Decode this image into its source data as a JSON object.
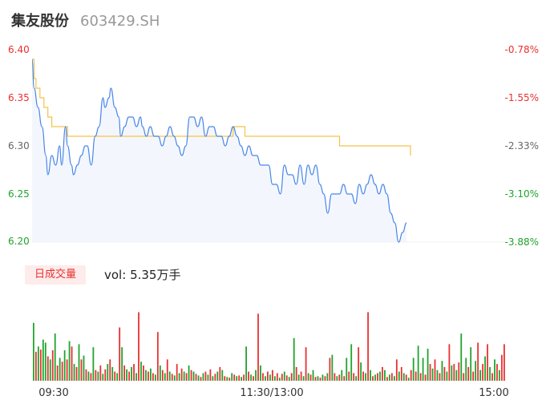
{
  "header": {
    "name": "集友股份",
    "code": "603429.SH"
  },
  "volume_panel": {
    "tab_label": "日成交量",
    "vol_prefix": "vol:",
    "vol_value": "5.35万手"
  },
  "colors": {
    "price_line": "#4a86e8",
    "avg_line": "#f5c24a",
    "up": "#e93030",
    "down": "#1fa32c",
    "price_fill": "#f3f7fd"
  },
  "chart_data": {
    "type": "line",
    "title": "",
    "price_axis": {
      "ylim": [
        6.2,
        6.4
      ],
      "ticks": [
        6.4,
        6.35,
        6.3,
        6.25,
        6.2
      ],
      "tick_labels": [
        "6.40",
        "6.35",
        "6.30",
        "6.25",
        "6.20"
      ]
    },
    "pct_axis": {
      "tick_labels": [
        "-0.78%",
        "-1.55%",
        "-2.33%",
        "-3.10%",
        "-3.88%"
      ]
    },
    "x_ticks": [
      "09:30",
      "11:30/13:00",
      "15:00"
    ],
    "price_keypoints": [
      [
        0,
        6.39
      ],
      [
        1,
        6.36
      ],
      [
        3,
        6.34
      ],
      [
        5,
        6.32
      ],
      [
        7,
        6.29
      ],
      [
        8,
        6.27
      ],
      [
        10,
        6.29
      ],
      [
        12,
        6.28
      ],
      [
        14,
        6.3
      ],
      [
        15,
        6.28
      ],
      [
        17,
        6.32
      ],
      [
        18,
        6.3
      ],
      [
        20,
        6.28
      ],
      [
        21,
        6.27
      ],
      [
        23,
        6.28
      ],
      [
        25,
        6.29
      ],
      [
        27,
        6.3
      ],
      [
        28,
        6.3
      ],
      [
        30,
        6.28
      ],
      [
        32,
        6.31
      ],
      [
        34,
        6.32
      ],
      [
        36,
        6.35
      ],
      [
        37,
        6.34
      ],
      [
        39,
        6.35
      ],
      [
        40,
        6.36
      ],
      [
        42,
        6.34
      ],
      [
        44,
        6.33
      ],
      [
        45,
        6.31
      ],
      [
        47,
        6.32
      ],
      [
        49,
        6.33
      ],
      [
        51,
        6.33
      ],
      [
        53,
        6.32
      ],
      [
        55,
        6.33
      ],
      [
        56,
        6.32
      ],
      [
        58,
        6.31
      ],
      [
        60,
        6.32
      ],
      [
        62,
        6.31
      ],
      [
        64,
        6.31
      ],
      [
        66,
        6.3
      ],
      [
        68,
        6.31
      ],
      [
        70,
        6.32
      ],
      [
        72,
        6.31
      ],
      [
        74,
        6.3
      ],
      [
        76,
        6.29
      ],
      [
        78,
        6.3
      ],
      [
        80,
        6.33
      ],
      [
        82,
        6.33
      ],
      [
        84,
        6.32
      ],
      [
        86,
        6.33
      ],
      [
        88,
        6.31
      ],
      [
        90,
        6.32
      ],
      [
        92,
        6.32
      ],
      [
        94,
        6.31
      ],
      [
        96,
        6.31
      ],
      [
        98,
        6.3
      ],
      [
        100,
        6.31
      ],
      [
        102,
        6.32
      ],
      [
        104,
        6.31
      ],
      [
        106,
        6.3
      ],
      [
        108,
        6.29
      ],
      [
        110,
        6.3
      ],
      [
        112,
        6.29
      ],
      [
        114,
        6.29
      ],
      [
        116,
        6.28
      ],
      [
        118,
        6.28
      ],
      [
        120,
        6.28
      ],
      [
        122,
        6.26
      ],
      [
        124,
        6.26
      ],
      [
        126,
        6.25
      ],
      [
        128,
        6.28
      ],
      [
        130,
        6.27
      ],
      [
        132,
        6.27
      ],
      [
        134,
        6.26
      ],
      [
        136,
        6.28
      ],
      [
        138,
        6.26
      ],
      [
        140,
        6.28
      ],
      [
        142,
        6.27
      ],
      [
        144,
        6.28
      ],
      [
        146,
        6.26
      ],
      [
        148,
        6.25
      ],
      [
        150,
        6.23
      ],
      [
        152,
        6.25
      ],
      [
        154,
        6.25
      ],
      [
        156,
        6.25
      ],
      [
        158,
        6.26
      ],
      [
        160,
        6.25
      ],
      [
        162,
        6.25
      ],
      [
        164,
        6.24
      ],
      [
        166,
        6.26
      ],
      [
        168,
        6.25
      ],
      [
        170,
        6.26
      ],
      [
        172,
        6.27
      ],
      [
        174,
        6.26
      ],
      [
        176,
        6.25
      ],
      [
        178,
        6.26
      ],
      [
        180,
        6.25
      ],
      [
        182,
        6.23
      ],
      [
        184,
        6.22
      ],
      [
        186,
        6.2
      ],
      [
        188,
        6.21
      ],
      [
        190,
        6.22
      ]
    ],
    "avg_keypoints": [
      [
        0,
        6.39
      ],
      [
        1,
        6.37
      ],
      [
        2,
        6.36
      ],
      [
        4,
        6.35
      ],
      [
        6,
        6.34
      ],
      [
        8,
        6.33
      ],
      [
        10,
        6.32
      ],
      [
        16,
        6.32
      ],
      [
        18,
        6.31
      ],
      [
        100,
        6.31
      ],
      [
        102,
        6.32
      ],
      [
        106,
        6.32
      ],
      [
        108,
        6.31
      ],
      [
        154,
        6.31
      ],
      [
        156,
        6.3
      ],
      [
        190,
        6.3
      ],
      [
        192,
        6.29
      ]
    ],
    "volume_bars": {
      "unit": "relative",
      "values": [
        [
          0.76,
          "down"
        ],
        [
          0.38,
          "up"
        ],
        [
          0.45,
          "down"
        ],
        [
          0.41,
          "up"
        ],
        [
          0.54,
          "down"
        ],
        [
          0.5,
          "down"
        ],
        [
          0.32,
          "up"
        ],
        [
          0.28,
          "down"
        ],
        [
          0.4,
          "up"
        ],
        [
          0.62,
          "down"
        ],
        [
          0.2,
          "up"
        ],
        [
          0.3,
          "down"
        ],
        [
          0.25,
          "up"
        ],
        [
          0.4,
          "down"
        ],
        [
          0.28,
          "up"
        ],
        [
          0.52,
          "down"
        ],
        [
          0.45,
          "up"
        ],
        [
          0.22,
          "down"
        ],
        [
          0.18,
          "up"
        ],
        [
          0.48,
          "down"
        ],
        [
          0.28,
          "up"
        ],
        [
          0.33,
          "down"
        ],
        [
          0.15,
          "up"
        ],
        [
          0.12,
          "down"
        ],
        [
          0.1,
          "up"
        ],
        [
          0.44,
          "down"
        ],
        [
          0.14,
          "up"
        ],
        [
          0.12,
          "down"
        ],
        [
          0.2,
          "up"
        ],
        [
          0.09,
          "down"
        ],
        [
          0.15,
          "up"
        ],
        [
          0.22,
          "down"
        ],
        [
          0.28,
          "up"
        ],
        [
          0.18,
          "down"
        ],
        [
          0.12,
          "up"
        ],
        [
          0.1,
          "down"
        ],
        [
          0.7,
          "up"
        ],
        [
          0.44,
          "down"
        ],
        [
          0.2,
          "up"
        ],
        [
          0.15,
          "down"
        ],
        [
          0.12,
          "up"
        ],
        [
          0.18,
          "down"
        ],
        [
          0.22,
          "up"
        ],
        [
          0.1,
          "down"
        ],
        [
          0.9,
          "up"
        ],
        [
          0.25,
          "down"
        ],
        [
          0.2,
          "up"
        ],
        [
          0.14,
          "down"
        ],
        [
          0.12,
          "up"
        ],
        [
          0.16,
          "down"
        ],
        [
          0.1,
          "up"
        ],
        [
          0.08,
          "down"
        ],
        [
          0.64,
          "up"
        ],
        [
          0.2,
          "down"
        ],
        [
          0.14,
          "up"
        ],
        [
          0.1,
          "down"
        ],
        [
          0.28,
          "up"
        ],
        [
          0.12,
          "down"
        ],
        [
          0.09,
          "up"
        ],
        [
          0.07,
          "down"
        ],
        [
          0.22,
          "up"
        ],
        [
          0.1,
          "down"
        ],
        [
          0.16,
          "up"
        ],
        [
          0.12,
          "down"
        ],
        [
          0.1,
          "up"
        ],
        [
          0.2,
          "down"
        ],
        [
          0.14,
          "up"
        ],
        [
          0.12,
          "down"
        ],
        [
          0.09,
          "up"
        ],
        [
          0.07,
          "down"
        ],
        [
          0.05,
          "up"
        ],
        [
          0.1,
          "down"
        ],
        [
          0.12,
          "up"
        ],
        [
          0.08,
          "down"
        ],
        [
          0.15,
          "up"
        ],
        [
          0.06,
          "down"
        ],
        [
          0.09,
          "up"
        ],
        [
          0.12,
          "down"
        ],
        [
          0.18,
          "up"
        ],
        [
          0.14,
          "down"
        ],
        [
          0.06,
          "up"
        ],
        [
          0.05,
          "down"
        ],
        [
          0.04,
          "up"
        ],
        [
          0.1,
          "down"
        ],
        [
          0.08,
          "up"
        ],
        [
          0.06,
          "down"
        ],
        [
          0.07,
          "up"
        ],
        [
          0.05,
          "down"
        ],
        [
          0.08,
          "up"
        ],
        [
          0.45,
          "down"
        ],
        [
          0.12,
          "up"
        ],
        [
          0.08,
          "down"
        ],
        [
          0.06,
          "up"
        ],
        [
          0.14,
          "down"
        ],
        [
          0.88,
          "up"
        ],
        [
          0.2,
          "down"
        ],
        [
          0.1,
          "up"
        ],
        [
          0.06,
          "down"
        ],
        [
          0.12,
          "up"
        ],
        [
          0.08,
          "down"
        ],
        [
          0.14,
          "up"
        ],
        [
          0.06,
          "down"
        ],
        [
          0.1,
          "up"
        ],
        [
          0.04,
          "down"
        ],
        [
          0.09,
          "up"
        ],
        [
          0.12,
          "down"
        ],
        [
          0.07,
          "up"
        ],
        [
          0.05,
          "down"
        ],
        [
          0.1,
          "up"
        ],
        [
          0.56,
          "down"
        ],
        [
          0.18,
          "up"
        ],
        [
          0.08,
          "down"
        ],
        [
          0.12,
          "up"
        ],
        [
          0.06,
          "down"
        ],
        [
          0.44,
          "up"
        ],
        [
          0.1,
          "down"
        ],
        [
          0.08,
          "up"
        ],
        [
          0.14,
          "down"
        ],
        [
          0.05,
          "up"
        ],
        [
          0.06,
          "down"
        ],
        [
          0.04,
          "up"
        ],
        [
          0.08,
          "down"
        ],
        [
          0.06,
          "up"
        ],
        [
          0.1,
          "down"
        ],
        [
          0.3,
          "up"
        ],
        [
          0.34,
          "down"
        ],
        [
          0.1,
          "up"
        ],
        [
          0.06,
          "down"
        ],
        [
          0.08,
          "up"
        ],
        [
          0.14,
          "down"
        ],
        [
          0.06,
          "up"
        ],
        [
          0.3,
          "down"
        ],
        [
          0.12,
          "up"
        ],
        [
          0.48,
          "down"
        ],
        [
          0.1,
          "up"
        ],
        [
          0.06,
          "down"
        ],
        [
          0.44,
          "up"
        ],
        [
          0.24,
          "down"
        ],
        [
          0.12,
          "up"
        ],
        [
          0.1,
          "down"
        ],
        [
          0.9,
          "up"
        ],
        [
          0.14,
          "down"
        ],
        [
          0.06,
          "up"
        ],
        [
          0.08,
          "down"
        ],
        [
          0.1,
          "up"
        ],
        [
          0.12,
          "down"
        ],
        [
          0.18,
          "up"
        ],
        [
          0.14,
          "down"
        ],
        [
          0.05,
          "up"
        ],
        [
          0.08,
          "down"
        ],
        [
          0.1,
          "up"
        ],
        [
          0.06,
          "down"
        ],
        [
          0.28,
          "up"
        ],
        [
          0.12,
          "down"
        ],
        [
          0.18,
          "up"
        ],
        [
          0.1,
          "down"
        ],
        [
          0.08,
          "up"
        ],
        [
          0.04,
          "down"
        ],
        [
          0.14,
          "up"
        ],
        [
          0.3,
          "down"
        ],
        [
          0.12,
          "up"
        ],
        [
          0.46,
          "down"
        ],
        [
          0.1,
          "up"
        ],
        [
          0.3,
          "down"
        ],
        [
          0.08,
          "up"
        ],
        [
          0.42,
          "down"
        ],
        [
          0.22,
          "up"
        ],
        [
          0.16,
          "down"
        ],
        [
          0.28,
          "up"
        ],
        [
          0.14,
          "down"
        ],
        [
          0.1,
          "up"
        ],
        [
          0.26,
          "down"
        ],
        [
          0.18,
          "up"
        ],
        [
          0.12,
          "down"
        ],
        [
          0.48,
          "up"
        ],
        [
          0.2,
          "down"
        ],
        [
          0.22,
          "up"
        ],
        [
          0.14,
          "down"
        ],
        [
          0.24,
          "up"
        ],
        [
          0.62,
          "down"
        ],
        [
          0.1,
          "up"
        ],
        [
          0.3,
          "down"
        ],
        [
          0.18,
          "up"
        ],
        [
          0.44,
          "down"
        ],
        [
          0.12,
          "up"
        ],
        [
          0.26,
          "down"
        ],
        [
          0.5,
          "up"
        ],
        [
          0.14,
          "down"
        ],
        [
          0.22,
          "up"
        ],
        [
          0.32,
          "down"
        ],
        [
          0.48,
          "up"
        ],
        [
          0.18,
          "down"
        ],
        [
          0.1,
          "up"
        ],
        [
          0.28,
          "down"
        ],
        [
          0.22,
          "up"
        ],
        [
          0.14,
          "down"
        ],
        [
          0.34,
          "up"
        ],
        [
          0.48,
          "up"
        ]
      ]
    }
  }
}
